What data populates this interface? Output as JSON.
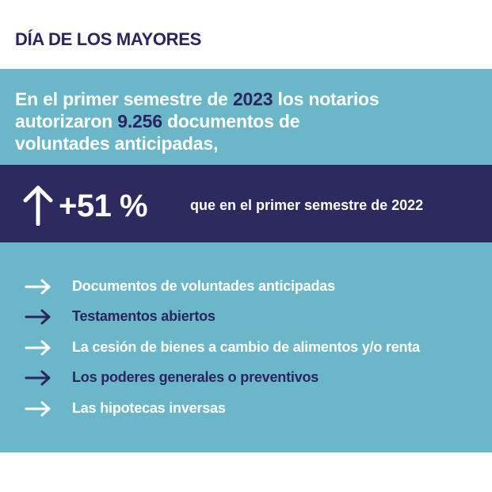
{
  "header": {
    "title": "DÍA DE LOS MAYORES"
  },
  "intro": {
    "line1_a": "En el primer semestre de ",
    "year": "2023",
    "line1_b": " los notarios",
    "line2_a": "autorizaron ",
    "count": "9.256",
    "line2_b": " documentos de",
    "line3": "voluntades anticipadas,"
  },
  "band": {
    "icon": "arrow-up-icon",
    "percent": "+51 %",
    "text": "que en el primer semestre de 2022"
  },
  "list": {
    "items": [
      {
        "label": "Documentos de voluntades anticipadas",
        "color": "#ffffff",
        "icon": "arrow-right-icon"
      },
      {
        "label": "Testamentos abiertos",
        "color": "#2a2560",
        "icon": "arrow-right-icon"
      },
      {
        "label": "La cesión de bienes a cambio de alimentos y/o renta",
        "color": "#ffffff",
        "icon": "arrow-right-icon"
      },
      {
        "label": "Los poderes generales o preventivos",
        "color": "#2a2560",
        "icon": "arrow-right-icon"
      },
      {
        "label": "Las hipotecas inversas",
        "color": "#ffffff",
        "icon": "arrow-right-icon"
      }
    ]
  },
  "colors": {
    "teal": "#6bb6c9",
    "navy": "#2d2a60",
    "white": "#ffffff"
  }
}
